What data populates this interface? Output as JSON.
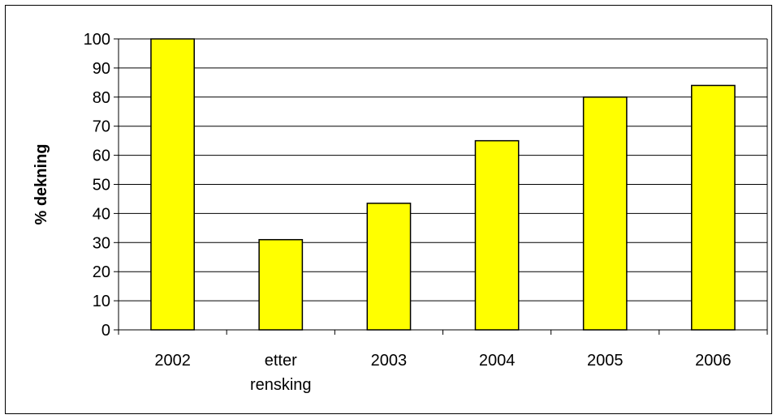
{
  "chart_data": {
    "type": "bar",
    "categories": [
      [
        "2002"
      ],
      [
        "etter",
        "rensking"
      ],
      [
        "2003"
      ],
      [
        "2004"
      ],
      [
        "2005"
      ],
      [
        "2006"
      ]
    ],
    "values": [
      100,
      31,
      43.5,
      65,
      80,
      84
    ],
    "title": "",
    "xlabel": "",
    "ylabel": "% dekning",
    "ylim": [
      0,
      100
    ],
    "yticks": [
      0,
      10,
      20,
      30,
      40,
      50,
      60,
      70,
      80,
      90,
      100
    ],
    "grid": true,
    "legend": "none",
    "colors": {
      "bar_fill": "#ffff00",
      "bar_stroke": "#000000",
      "grid": "#000000"
    }
  }
}
